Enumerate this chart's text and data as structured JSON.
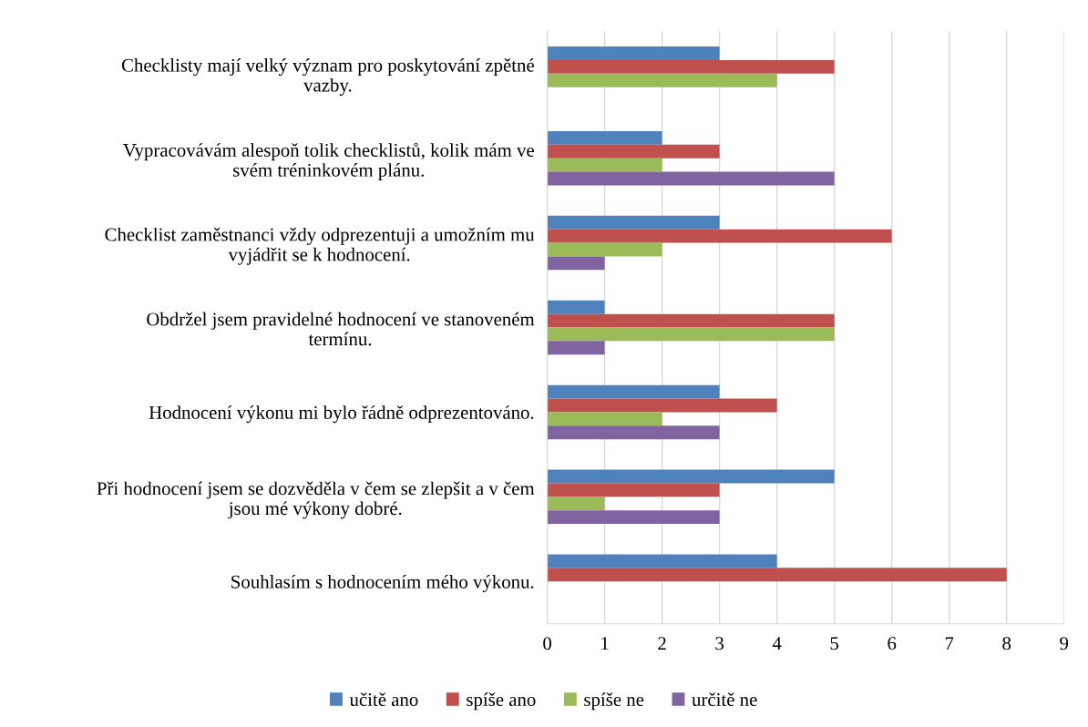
{
  "chart_data": {
    "type": "bar",
    "orientation": "horizontal",
    "categories": [
      "Checklisty mají velký význam pro poskytování zpětné\nvazby.",
      "Vypracovávám alespoň tolik checklistů, kolik mám ve\nsvém tréninkovém plánu.",
      "Checklist zaměstnanci vždy odprezentuji a umožním mu\nvyjádřit se k hodnocení.",
      "Obdržel jsem pravidelné hodnocení ve stanoveném\ntermínu.",
      "Hodnocení výkonu mi bylo řádně odprezentováno.",
      "Při hodnocení jsem se dozvěděla v čem se zlepšit a v čem\njsou mé výkony dobré.",
      "Souhlasím s hodnocením mého výkonu."
    ],
    "series": [
      {
        "name": "učitě ano",
        "color": "#4f81bd",
        "values": [
          3,
          2,
          3,
          1,
          3,
          5,
          4
        ]
      },
      {
        "name": "spíše ano",
        "color": "#c0504d",
        "values": [
          5,
          3,
          6,
          5,
          4,
          3,
          8
        ]
      },
      {
        "name": "spíše ne",
        "color": "#9bbb59",
        "values": [
          4,
          2,
          2,
          5,
          2,
          1,
          0
        ]
      },
      {
        "name": "určitě ne",
        "color": "#8064a2",
        "values": [
          0,
          5,
          1,
          1,
          3,
          3,
          0
        ]
      }
    ],
    "xlim": [
      0,
      9
    ],
    "xticks": [
      0,
      1,
      2,
      3,
      4,
      5,
      6,
      7,
      8,
      9
    ],
    "grid": "x",
    "legend": "bottom"
  }
}
